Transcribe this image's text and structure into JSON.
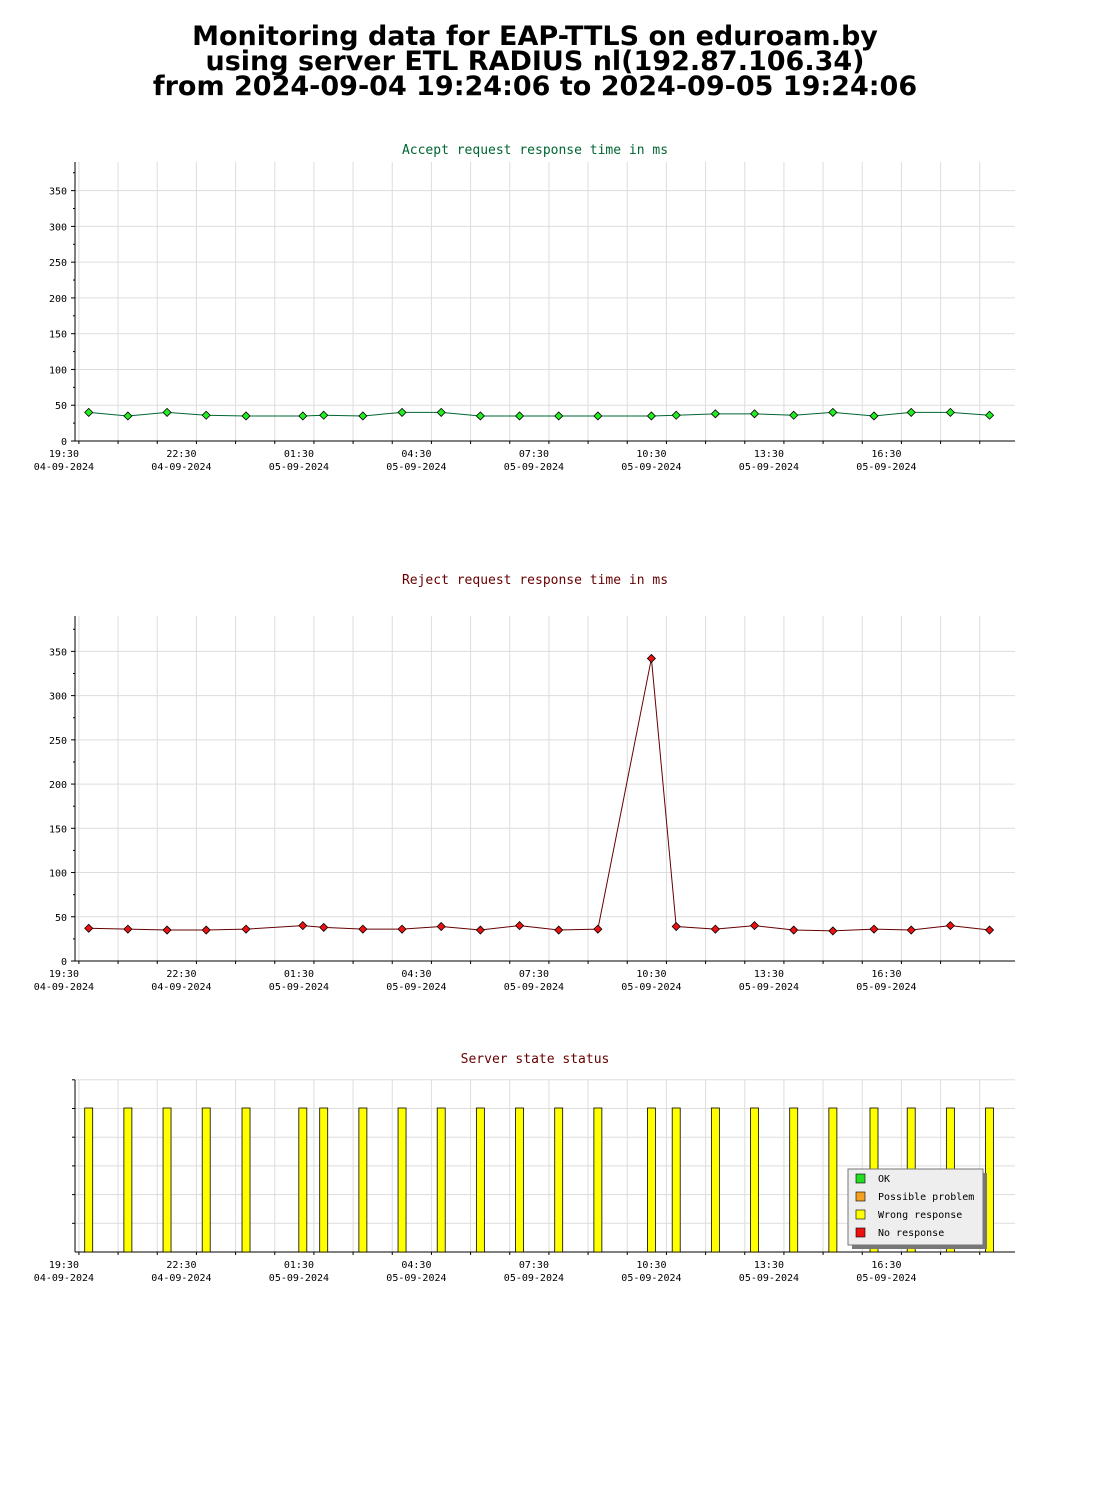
{
  "page_title": {
    "line1": "Monitoring data for EAP-TTLS on eduroam.by",
    "line2": "using server ETL RADIUS nl(192.87.106.34)",
    "line3": "from 2024-09-04 19:24:06 to 2024-09-05 19:24:06"
  },
  "colors": {
    "accept_title": "#006633",
    "reject_title": "#660000",
    "status_title": "#660000",
    "accept_line": "#006633",
    "accept_marker": "#22ee22",
    "reject_line": "#660000",
    "reject_marker": "#ee1111",
    "bar_fill": "#ffff00",
    "ok": "#22dd22",
    "possible_problem": "#f4a020",
    "wrong_response": "#ffff00",
    "no_response": "#ee1111"
  },
  "x_axis": {
    "time_range": [
      "2024-09-04 19:24",
      "2024-09-05 19:24"
    ],
    "ticks": [
      {
        "time": "19:30",
        "date": "04-09-2024"
      },
      {
        "time": "22:30",
        "date": "04-09-2024"
      },
      {
        "time": "01:30",
        "date": "05-09-2024"
      },
      {
        "time": "04:30",
        "date": "05-09-2024"
      },
      {
        "time": "07:30",
        "date": "05-09-2024"
      },
      {
        "time": "10:30",
        "date": "05-09-2024"
      },
      {
        "time": "13:30",
        "date": "05-09-2024"
      },
      {
        "time": "16:30",
        "date": "05-09-2024"
      }
    ]
  },
  "chart_data": [
    {
      "type": "line",
      "title": "Accept request response time in ms",
      "ylim": [
        0,
        390
      ],
      "yticks": [
        0,
        50,
        100,
        150,
        200,
        250,
        300,
        350
      ],
      "grid": true,
      "x": [
        "2024-09-04 19:45",
        "2024-09-04 20:45",
        "2024-09-04 21:45",
        "2024-09-04 22:45",
        "2024-09-04 23:46",
        "2024-09-05 01:13",
        "2024-09-05 01:45",
        "2024-09-05 02:45",
        "2024-09-05 03:45",
        "2024-09-05 04:45",
        "2024-09-05 05:45",
        "2024-09-05 06:45",
        "2024-09-05 07:45",
        "2024-09-05 08:45",
        "2024-09-05 10:07",
        "2024-09-05 10:45",
        "2024-09-05 11:45",
        "2024-09-05 12:45",
        "2024-09-05 13:45",
        "2024-09-05 14:45",
        "2024-09-05 15:48",
        "2024-09-05 16:45",
        "2024-09-05 17:45",
        "2024-09-05 18:45"
      ],
      "series": [
        {
          "values": [
            40,
            35,
            40,
            36,
            35,
            35,
            36,
            35,
            40,
            40,
            35,
            35,
            35,
            35,
            35,
            36,
            38,
            38,
            36,
            40,
            35,
            40,
            40,
            36
          ]
        }
      ]
    },
    {
      "type": "line",
      "title": "Reject request response time in ms",
      "ylim": [
        0,
        390
      ],
      "yticks": [
        0,
        50,
        100,
        150,
        200,
        250,
        300,
        350
      ],
      "grid": true,
      "x": [
        "2024-09-04 19:45",
        "2024-09-04 20:45",
        "2024-09-04 21:45",
        "2024-09-04 22:45",
        "2024-09-04 23:46",
        "2024-09-05 01:13",
        "2024-09-05 01:45",
        "2024-09-05 02:45",
        "2024-09-05 03:45",
        "2024-09-05 04:45",
        "2024-09-05 05:45",
        "2024-09-05 06:45",
        "2024-09-05 07:45",
        "2024-09-05 08:45",
        "2024-09-05 10:07",
        "2024-09-05 10:45",
        "2024-09-05 11:45",
        "2024-09-05 12:45",
        "2024-09-05 13:45",
        "2024-09-05 14:45",
        "2024-09-05 15:48",
        "2024-09-05 16:45",
        "2024-09-05 17:45",
        "2024-09-05 18:45"
      ],
      "series": [
        {
          "values": [
            37,
            36,
            35,
            35,
            36,
            40,
            38,
            36,
            36,
            39,
            35,
            40,
            35,
            36,
            342,
            39,
            36,
            40,
            35,
            34,
            36,
            35,
            40,
            35
          ]
        }
      ]
    },
    {
      "type": "bar",
      "title": "Server state status",
      "grid": true,
      "legend_position": "bottom-right",
      "legend": [
        "OK",
        "Possible problem",
        "Wrong response",
        "No response"
      ],
      "x": [
        "2024-09-04 19:45",
        "2024-09-04 20:45",
        "2024-09-04 21:45",
        "2024-09-04 22:45",
        "2024-09-04 23:46",
        "2024-09-05 01:13",
        "2024-09-05 01:45",
        "2024-09-05 02:45",
        "2024-09-05 03:45",
        "2024-09-05 04:45",
        "2024-09-05 05:45",
        "2024-09-05 06:45",
        "2024-09-05 07:45",
        "2024-09-05 08:45",
        "2024-09-05 10:07",
        "2024-09-05 10:45",
        "2024-09-05 11:45",
        "2024-09-05 12:45",
        "2024-09-05 13:45",
        "2024-09-05 14:45",
        "2024-09-05 15:48",
        "2024-09-05 16:45",
        "2024-09-05 17:45",
        "2024-09-05 18:45"
      ],
      "series": [
        {
          "name": "Wrong response",
          "values": [
            1,
            1,
            1,
            1,
            1,
            1,
            1,
            1,
            1,
            1,
            1,
            1,
            1,
            1,
            1,
            1,
            1,
            1,
            1,
            1,
            1,
            1,
            1,
            1
          ]
        }
      ]
    }
  ]
}
